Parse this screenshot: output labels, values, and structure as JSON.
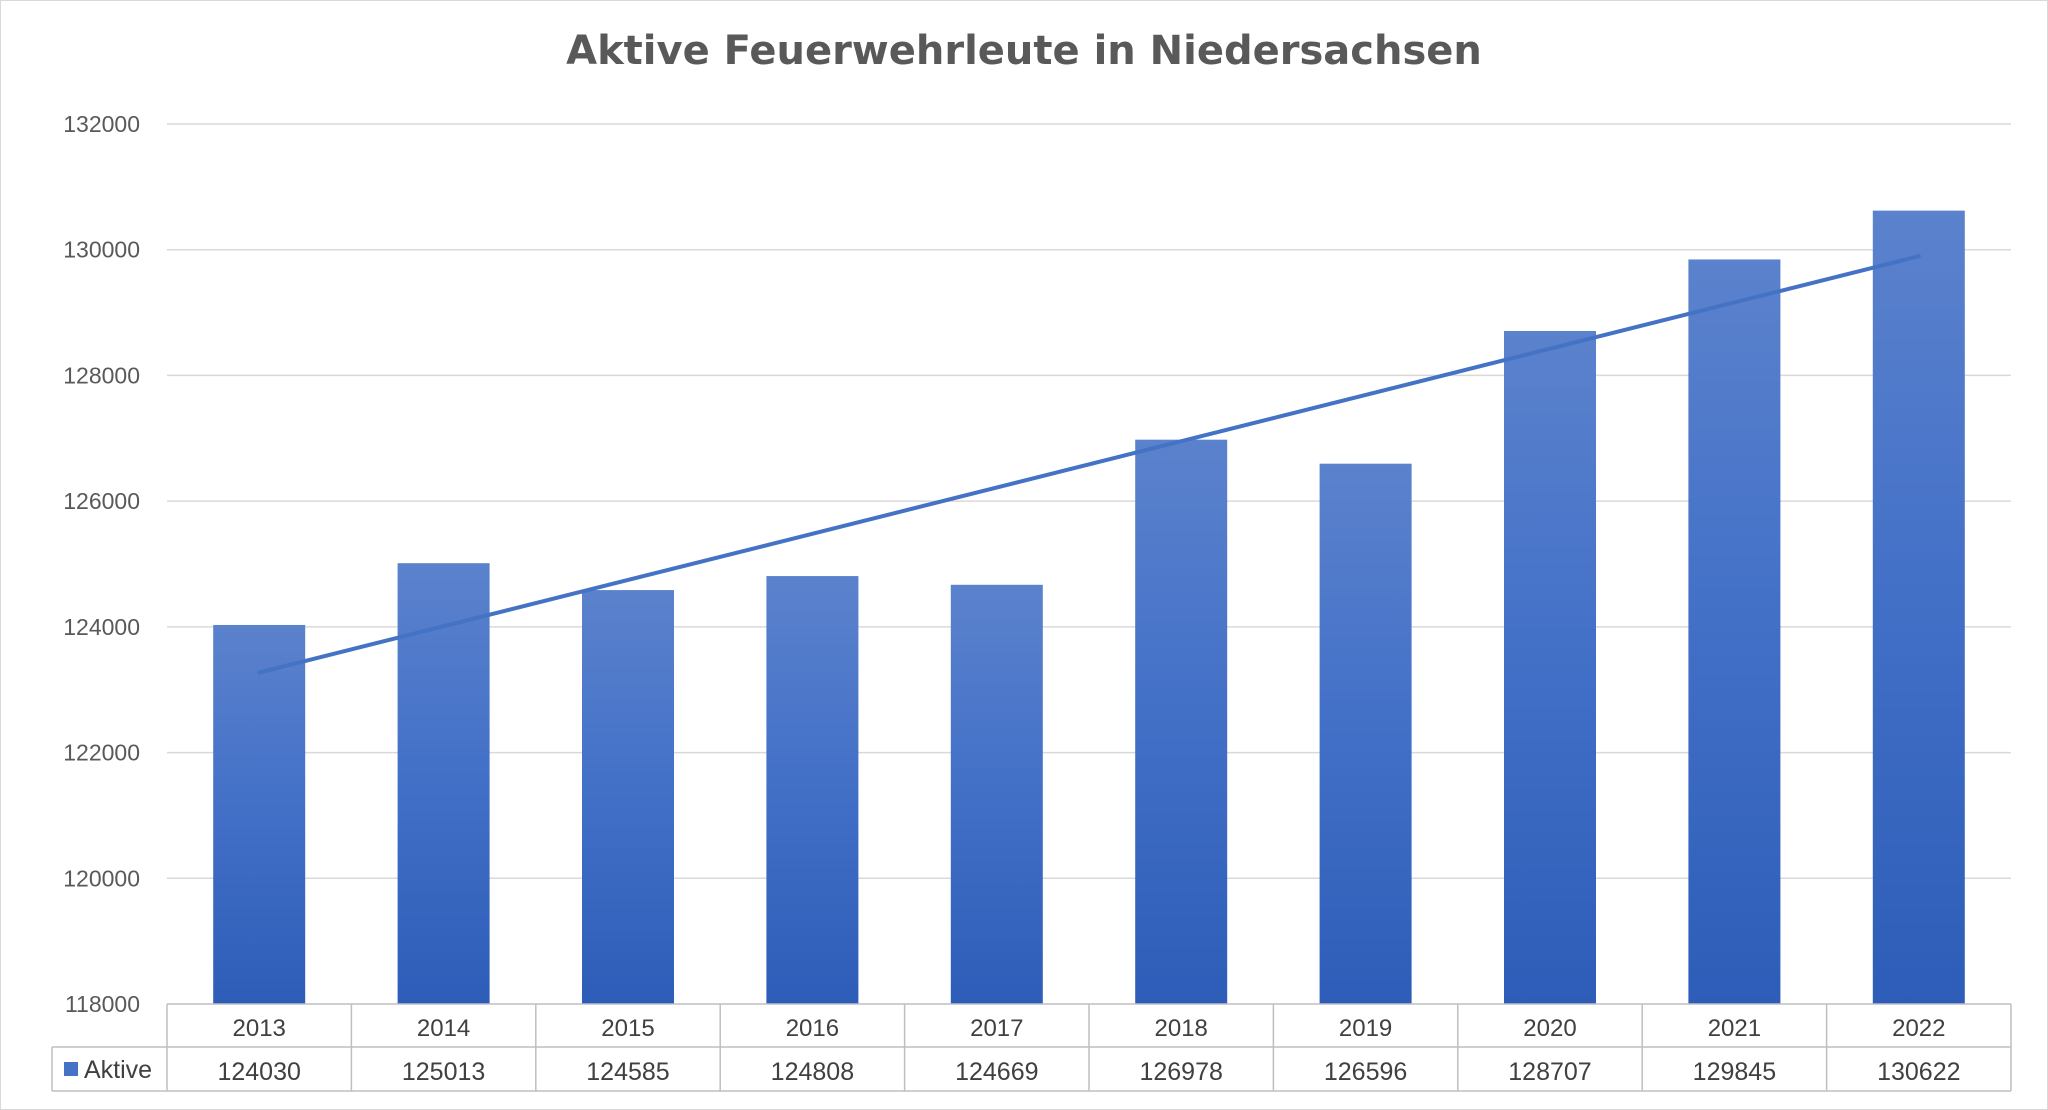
{
  "chart_data": {
    "type": "bar",
    "title": "Aktive Feuerwehrleute in Niedersachsen",
    "categories": [
      "2013",
      "2014",
      "2015",
      "2016",
      "2017",
      "2018",
      "2019",
      "2020",
      "2021",
      "2022"
    ],
    "series": [
      {
        "name": "Aktive",
        "values": [
          124030,
          125013,
          124585,
          124808,
          124669,
          126978,
          126596,
          128707,
          129845,
          130622
        ],
        "color": "#4472c4"
      }
    ],
    "trendline": {
      "type": "linear",
      "color": "#4472c4"
    },
    "ylim": [
      118000,
      132000
    ],
    "yticks": [
      118000,
      120000,
      122000,
      124000,
      126000,
      128000,
      130000,
      132000
    ],
    "grid": true,
    "legend": "data-table",
    "data_table": true
  }
}
